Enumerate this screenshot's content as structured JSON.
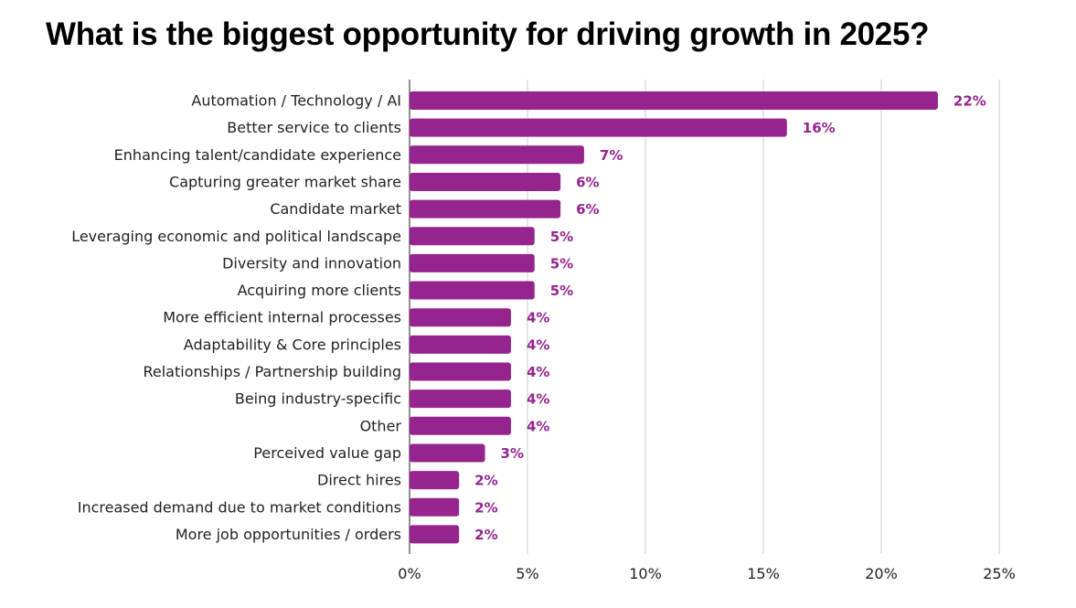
{
  "colors": {
    "bar": "#95248f",
    "grid": "#cccccc",
    "axis": "#555555"
  },
  "chart_data": {
    "type": "bar",
    "orientation": "horizontal",
    "title": "What is the biggest opportunity for driving growth in 2025?",
    "categories": [
      "Automation / Technology / AI",
      "Better service to clients",
      "Enhancing talent/candidate experience",
      "Capturing greater market share",
      "Candidate market",
      "Leveraging economic and political landscape",
      "Diversity and innovation",
      "Acquiring more clients",
      "More efficient internal processes",
      "Adaptability & Core principles",
      "Relationships / Partnership building",
      "Being industry-specific",
      "Other",
      "Perceived value gap",
      "Direct hires",
      "Increased demand due to market conditions",
      "More job opportunities / orders"
    ],
    "values": [
      22.4,
      16.0,
      7.4,
      6.4,
      6.4,
      5.3,
      5.3,
      5.3,
      4.3,
      4.3,
      4.3,
      4.3,
      4.3,
      3.2,
      2.1,
      2.1,
      2.1
    ],
    "value_labels": [
      "22%",
      "16%",
      "7%",
      "6%",
      "6%",
      "5%",
      "5%",
      "5%",
      "4%",
      "4%",
      "4%",
      "4%",
      "4%",
      "3%",
      "2%",
      "2%",
      "2%"
    ],
    "xlim": [
      0,
      25
    ],
    "x_ticks": [
      "0%",
      "5%",
      "10%",
      "15%",
      "20%",
      "25%"
    ],
    "grid": true
  }
}
